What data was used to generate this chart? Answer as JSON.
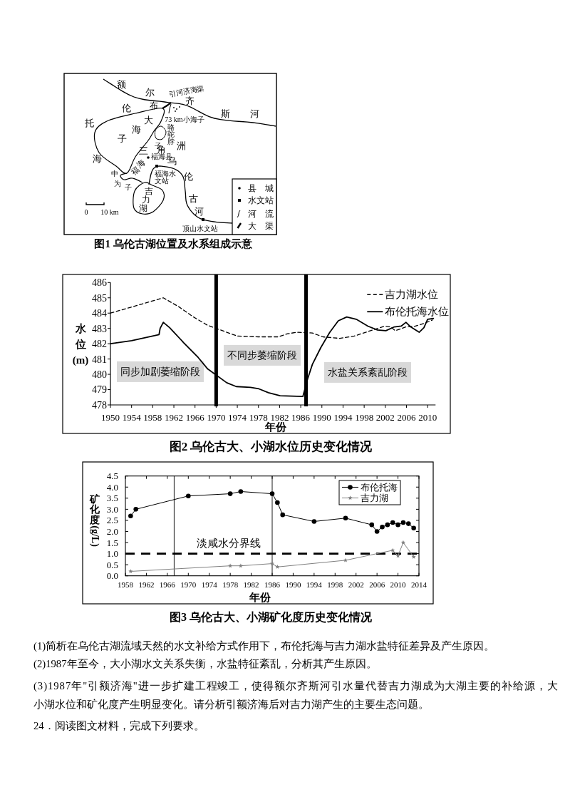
{
  "chart_data": [
    {
      "type": "other",
      "title": "图1 乌伦古湖位置及水系组成示意",
      "annotations": [
        "额尔齐斯河",
        "引河济海渠",
        "73 km小海子",
        "布",
        "伦",
        "托",
        "海",
        "大海子",
        "骆驼脖子",
        "三角洲",
        "福海县",
        "福海水文站",
        "乌伦古河",
        "福海",
        "中为子",
        "吉力湖",
        "0",
        "10 km",
        "顶山水文站",
        "县城",
        "水文站",
        "河流",
        "大渠"
      ]
    },
    {
      "type": "line",
      "title": "图2 乌伦古大、小湖水位历史变化情况",
      "xlabel": "年份",
      "ylabel": "水位(m)",
      "xlim": [
        1950,
        2011.5
      ],
      "ylim": [
        478,
        486
      ],
      "xticks": [
        1950,
        1954,
        1958,
        1962,
        1966,
        1970,
        1974,
        1978,
        1982,
        1986,
        1990,
        1994,
        1998,
        2002,
        2006,
        2010
      ],
      "yticks": [
        478,
        479,
        480,
        481,
        482,
        483,
        484,
        485,
        486
      ],
      "legend": "top right",
      "ref_lines": [
        {
          "axis": "x",
          "value": 1970
        },
        {
          "axis": "x",
          "value": 1987
        }
      ],
      "annotations": [
        "同步加剧萎缩阶段",
        "不同步萎缩阶段",
        "水盐关系紊乱阶段"
      ],
      "series": [
        {
          "name": "吉力湖水位",
          "color": "#000000",
          "line_style": "dashed",
          "x": [
            1950,
            1960,
            1963,
            1965.7,
            1968.4,
            1972,
            1974,
            1978,
            1981.7,
            1983.5,
            1985.3,
            1988.2,
            1990.2,
            1993.4,
            1996.1,
            1999.2,
            2001.9,
            2003,
            2003.9,
            2005.9,
            2007.7,
            2009.5,
            2010.9
          ],
          "values": [
            484.0,
            485.0,
            484.4,
            483.75,
            483.2,
            482.75,
            482.5,
            482.45,
            482.45,
            482.65,
            482.75,
            482.7,
            482.45,
            482.35,
            482.5,
            482.85,
            483.15,
            483.1,
            482.85,
            483.1,
            483.15,
            483.35,
            483.55
          ]
        },
        {
          "name": "布伦托海水位",
          "color": "#000000",
          "line_style": "solid",
          "x": [
            1950,
            1954,
            1959.2,
            1959.4,
            1960,
            1961.2,
            1963.9,
            1966.6,
            1968.4,
            1972,
            1973.8,
            1976.5,
            1978.1,
            1979.9,
            1982.1,
            1986.4,
            1987.3,
            1988.2,
            1989.8,
            1991.5,
            1993.1,
            1994.7,
            1996.5,
            1998.7,
            2000.5,
            2002.1,
            2003.7,
            2005,
            2005.9,
            2006.8,
            2008.4,
            2009.3,
            2010,
            2011.1
          ],
          "values": [
            482.0,
            482.2,
            482.6,
            483.0,
            483.4,
            483.05,
            482.05,
            481.1,
            480.35,
            479.45,
            479.2,
            479.15,
            479.05,
            478.8,
            478.6,
            478.55,
            479.7,
            480.65,
            481.75,
            482.75,
            483.5,
            483.75,
            483.6,
            483.15,
            482.9,
            482.85,
            483.1,
            483.15,
            483.4,
            483.1,
            482.75,
            483.05,
            483.6,
            483.65
          ]
        }
      ]
    },
    {
      "type": "line",
      "title": "图3 乌伦古大、小湖矿化度历史变化情况",
      "xlabel": "年份",
      "ylabel": "矿化度(g/L)",
      "xlim": [
        1958,
        2014
      ],
      "ylim": [
        0,
        4.5
      ],
      "xticks": [
        1958,
        1962,
        1966,
        1970,
        1974,
        1978,
        1982,
        1986,
        1990,
        1994,
        1998,
        2002,
        2006,
        2010,
        2014
      ],
      "yticks": [
        {
          "value": 0,
          "label": "0.0"
        },
        0.5,
        {
          "value": 1,
          "label": "1.0"
        },
        1.5,
        {
          "value": 2,
          "label": "2.0"
        },
        2.5,
        {
          "value": 3,
          "label": "3.0"
        },
        3.5,
        {
          "value": 4,
          "label": "4.0"
        },
        4.5
      ],
      "legend": "top right",
      "ref_lines": [
        {
          "axis": "x",
          "value": 1967.3
        },
        {
          "axis": "x",
          "value": 1986
        },
        {
          "axis": "y",
          "value": 1,
          "label": "淡咸水分界线",
          "line_style": "dashed"
        }
      ],
      "series": [
        {
          "name": "布伦托海",
          "color": "#000000",
          "marker": "circle",
          "x": [
            1959,
            1960,
            1970,
            1978,
            1980,
            1986,
            1987,
            1988,
            1994,
            2000,
            2005,
            2006,
            2007,
            2008,
            2009,
            2010,
            2011,
            2012,
            2013
          ],
          "values": [
            2.7,
            3.0,
            3.6,
            3.7,
            3.8,
            3.7,
            3.3,
            2.75,
            2.45,
            2.6,
            2.3,
            2.0,
            2.2,
            2.3,
            2.4,
            2.3,
            2.4,
            2.35,
            2.15
          ]
        },
        {
          "name": "吉力湖",
          "color": "#808080",
          "marker": "star",
          "x": [
            1959,
            1978,
            1980,
            1986,
            1987,
            2000,
            2009,
            2010,
            2011,
            2013
          ],
          "values": [
            0.2,
            0.45,
            0.45,
            0.55,
            0.4,
            0.7,
            1.15,
            0.9,
            1.5,
            0.85
          ]
        }
      ]
    },
    {
      "type": "other",
      "annotations": [
        "(1)简析在乌伦古湖流域天然的水文补给方式作用下，布伦托海与吉力湖水盐特征差异及产生原因。",
        "(2)1987年至今，大小湖水文关系失衡，水盐特征紊乱，分析其产生原因。",
        "(3)1987年\"引额济海\"进一步扩建工程竣工，使得额尔齐斯河引水量代替吉力湖成为大湖主要的补给源，大小湖水位和矿化度产生明显变化。请分析引额济海后对吉力湖产生的主要生态问题。",
        "24．阅读图文材料，完成下列要求。"
      ]
    }
  ]
}
